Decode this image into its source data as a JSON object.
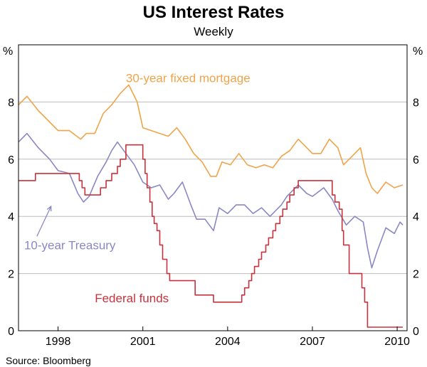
{
  "chart_data": {
    "type": "line",
    "title": "US Interest Rates",
    "subtitle": "Weekly",
    "ylabel_left": "%",
    "ylabel_right": "%",
    "source": "Source: Bloomberg",
    "ylim": [
      0,
      10
    ],
    "yticks": [
      0,
      2,
      4,
      6,
      8
    ],
    "ytick_labels": [
      "0",
      "2",
      "4",
      "6",
      "8"
    ],
    "xlim": [
      1996.6,
      2010.35
    ],
    "xticks": [
      1998,
      2001,
      2004,
      2007,
      2010
    ],
    "xtick_labels": [
      "1998",
      "2001",
      "2004",
      "2007",
      "2010"
    ],
    "grid": true,
    "series": [
      {
        "name": "30-year fixed mortgage",
        "label": "30-year fixed mortgage",
        "color": "#F0A44A",
        "step": false,
        "x": [
          1996.6,
          1996.9,
          1997.3,
          1997.7,
          1998.0,
          1998.4,
          1998.8,
          1999.0,
          1999.3,
          1999.6,
          1999.9,
          2000.2,
          2000.5,
          2000.8,
          2001.0,
          2001.3,
          2001.6,
          2001.9,
          2002.2,
          2002.5,
          2002.8,
          2003.1,
          2003.4,
          2003.6,
          2003.8,
          2004.1,
          2004.4,
          2004.7,
          2005.0,
          2005.3,
          2005.6,
          2005.9,
          2006.2,
          2006.5,
          2006.8,
          2007.0,
          2007.3,
          2007.6,
          2007.9,
          2008.1,
          2008.4,
          2008.7,
          2008.9,
          2009.1,
          2009.3,
          2009.6,
          2009.9,
          2010.2
        ],
        "values": [
          7.9,
          8.2,
          7.7,
          7.3,
          7.0,
          7.0,
          6.7,
          6.9,
          6.9,
          7.6,
          7.9,
          8.3,
          8.6,
          8.0,
          7.1,
          7.0,
          6.9,
          6.8,
          7.1,
          6.7,
          6.2,
          5.9,
          5.4,
          5.4,
          5.9,
          5.8,
          6.2,
          5.8,
          5.7,
          5.8,
          5.7,
          6.1,
          6.3,
          6.7,
          6.4,
          6.2,
          6.2,
          6.7,
          6.4,
          5.8,
          6.1,
          6.4,
          5.5,
          5.0,
          4.8,
          5.2,
          5.0,
          5.1
        ]
      },
      {
        "name": "10-year Treasury",
        "label": "10-year Treasury",
        "color": "#8B87C4",
        "step": false,
        "x": [
          1996.6,
          1996.9,
          1997.3,
          1997.7,
          1998.0,
          1998.4,
          1998.7,
          1998.9,
          1999.1,
          1999.4,
          1999.7,
          1999.9,
          2000.1,
          2000.4,
          2000.7,
          2001.0,
          2001.3,
          2001.6,
          2001.9,
          2002.1,
          2002.4,
          2002.7,
          2002.9,
          2003.2,
          2003.5,
          2003.7,
          2004.0,
          2004.3,
          2004.6,
          2004.9,
          2005.2,
          2005.5,
          2005.9,
          2006.1,
          2006.5,
          2006.8,
          2007.0,
          2007.4,
          2007.7,
          2007.9,
          2008.2,
          2008.5,
          2008.8,
          2008.95,
          2009.1,
          2009.3,
          2009.6,
          2009.9,
          2010.1,
          2010.2
        ],
        "values": [
          6.6,
          6.9,
          6.4,
          6.0,
          5.6,
          5.5,
          4.8,
          4.5,
          4.7,
          5.4,
          5.9,
          6.3,
          6.6,
          6.2,
          5.8,
          5.2,
          5.0,
          5.1,
          4.6,
          4.8,
          5.2,
          4.4,
          3.9,
          3.9,
          3.5,
          4.3,
          4.1,
          4.4,
          4.4,
          4.1,
          4.3,
          4.0,
          4.4,
          4.7,
          5.1,
          4.8,
          4.7,
          5.0,
          4.6,
          4.2,
          3.7,
          4.0,
          3.8,
          2.9,
          2.2,
          2.8,
          3.6,
          3.4,
          3.8,
          3.7
        ]
      },
      {
        "name": "Federal funds",
        "label": "Federal funds",
        "color": "#C8323C",
        "step": true,
        "x": [
          1996.6,
          1997.2,
          1998.75,
          1998.85,
          1998.95,
          1999.5,
          1999.7,
          1999.9,
          2000.1,
          2000.2,
          2000.4,
          2001.0,
          2001.08,
          2001.15,
          2001.25,
          2001.33,
          2001.4,
          2001.5,
          2001.6,
          2001.7,
          2001.85,
          2001.95,
          2002.85,
          2003.5,
          2004.5,
          2004.6,
          2004.75,
          2004.85,
          2004.95,
          2005.1,
          2005.2,
          2005.35,
          2005.45,
          2005.6,
          2005.7,
          2005.85,
          2005.95,
          2006.1,
          2006.2,
          2006.35,
          2006.5,
          2007.7,
          2007.8,
          2007.95,
          2008.05,
          2008.1,
          2008.3,
          2008.75,
          2008.85,
          2008.95,
          2010.2
        ],
        "values": [
          5.25,
          5.5,
          5.25,
          5.0,
          4.75,
          5.0,
          5.25,
          5.5,
          5.75,
          6.0,
          6.5,
          6.0,
          5.5,
          5.0,
          4.5,
          4.0,
          3.75,
          3.5,
          3.0,
          2.5,
          2.0,
          1.75,
          1.25,
          1.0,
          1.25,
          1.5,
          1.75,
          2.0,
          2.25,
          2.5,
          2.75,
          3.0,
          3.25,
          3.5,
          3.75,
          4.0,
          4.25,
          4.5,
          4.75,
          5.0,
          5.25,
          4.75,
          4.5,
          4.25,
          3.5,
          3.0,
          2.0,
          1.5,
          1.0,
          0.125,
          0.125
        ]
      }
    ]
  }
}
